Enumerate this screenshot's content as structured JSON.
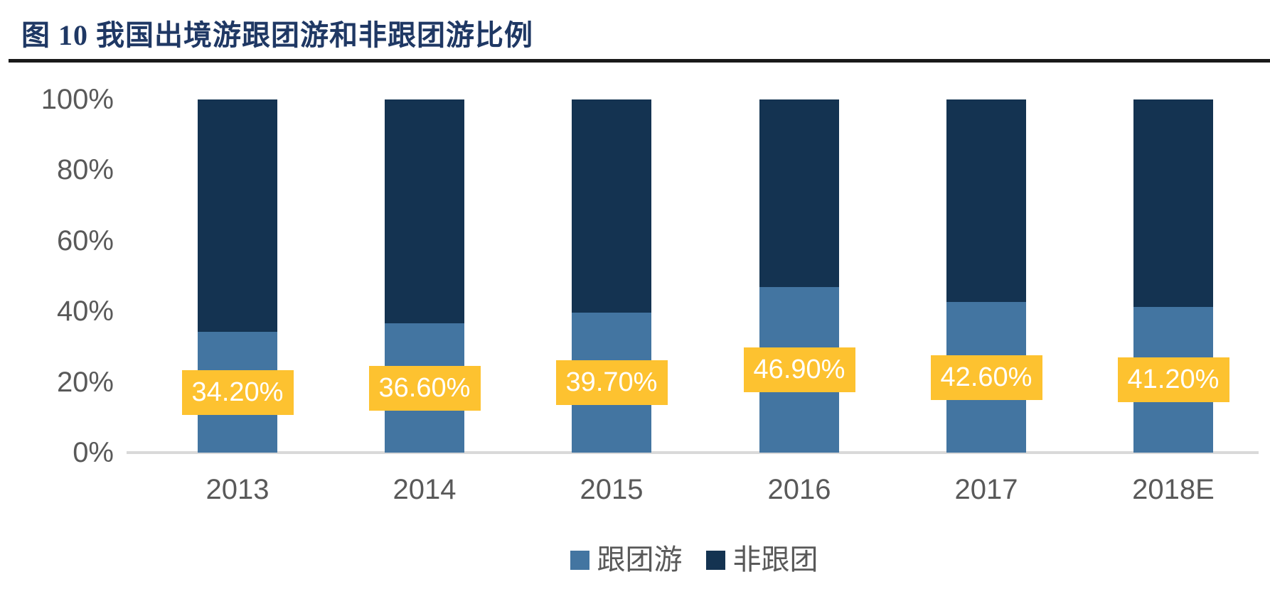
{
  "title": "图 10 我国出境游跟团游和非跟团游比例",
  "colors": {
    "title_text": "#1F3864",
    "title_rule": "#1A1A1A",
    "axis_text": "#595959",
    "baseline": "#D9D9D9",
    "group_tour": "#4375A1",
    "non_group_tour": "#143351",
    "data_label_bg": "#FDC230",
    "data_label_text": "#FFFFFF"
  },
  "chart_data": {
    "type": "bar",
    "stacked": true,
    "title": "图 10 我国出境游跟团游和非跟团游比例",
    "categories": [
      "2013",
      "2014",
      "2015",
      "2016",
      "2017",
      "2018E"
    ],
    "series": [
      {
        "name": "跟团游",
        "values": [
          34.2,
          36.6,
          39.7,
          46.9,
          42.6,
          41.2
        ],
        "color": "#4375A1"
      },
      {
        "name": "非跟团",
        "values": [
          65.8,
          63.4,
          60.3,
          53.1,
          57.4,
          58.8
        ],
        "color": "#143351"
      }
    ],
    "data_labels": [
      "34.20%",
      "36.60%",
      "39.70%",
      "46.90%",
      "42.60%",
      "41.20%"
    ],
    "data_label_series": "跟团游",
    "xlabel": "",
    "ylabel": "",
    "ylim": [
      0,
      100
    ],
    "y_ticks": [
      "0%",
      "20%",
      "40%",
      "60%",
      "80%",
      "100%"
    ],
    "y_tick_values": [
      0,
      20,
      40,
      60,
      80,
      100
    ],
    "grid": false,
    "legend": [
      "跟团游",
      "非跟团"
    ],
    "legend_position": "bottom"
  }
}
